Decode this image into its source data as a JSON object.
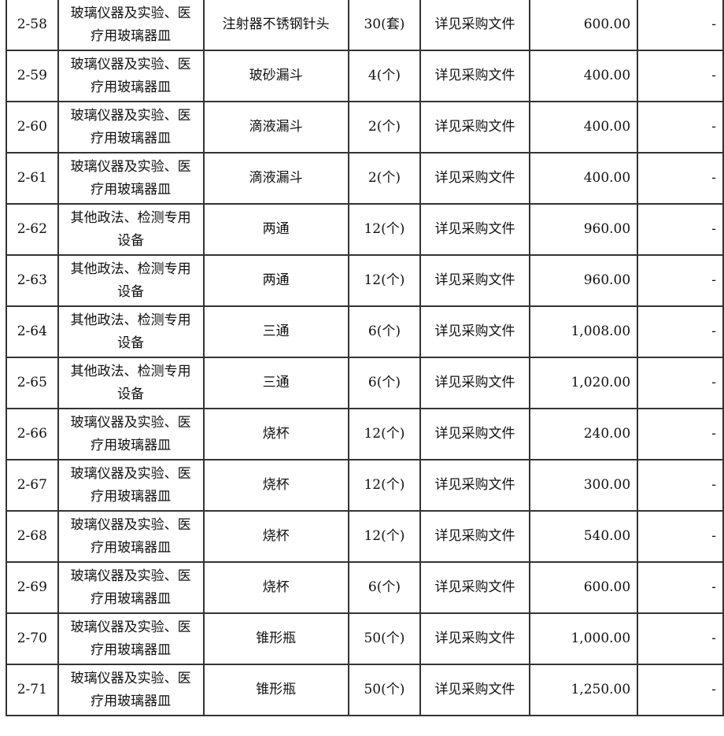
{
  "rows": [
    {
      "id": "2-58",
      "category": "玻璃仪器及实验、医疗用玻璃器皿",
      "name": "注射器不锈钢针头",
      "qty": "30(套)",
      "spec": "详见采购文件",
      "amount": "600.00",
      "remark": "-"
    },
    {
      "id": "2-59",
      "category": "玻璃仪器及实验、医疗用玻璃器皿",
      "name": "玻砂漏斗",
      "qty": "4(个)",
      "spec": "详见采购文件",
      "amount": "400.00",
      "remark": "-"
    },
    {
      "id": "2-60",
      "category": "玻璃仪器及实验、医疗用玻璃器皿",
      "name": "滴液漏斗",
      "qty": "2(个)",
      "spec": "详见采购文件",
      "amount": "400.00",
      "remark": "-"
    },
    {
      "id": "2-61",
      "category": "玻璃仪器及实验、医疗用玻璃器皿",
      "name": "滴液漏斗",
      "qty": "2(个)",
      "spec": "详见采购文件",
      "amount": "400.00",
      "remark": "-"
    },
    {
      "id": "2-62",
      "category": "其他政法、检测专用设备",
      "name": "两通",
      "qty": "12(个)",
      "spec": "详见采购文件",
      "amount": "960.00",
      "remark": "-"
    },
    {
      "id": "2-63",
      "category": "其他政法、检测专用设备",
      "name": "两通",
      "qty": "12(个)",
      "spec": "详见采购文件",
      "amount": "960.00",
      "remark": "-"
    },
    {
      "id": "2-64",
      "category": "其他政法、检测专用设备",
      "name": "三通",
      "qty": "6(个)",
      "spec": "详见采购文件",
      "amount": "1,008.00",
      "remark": "-"
    },
    {
      "id": "2-65",
      "category": "其他政法、检测专用设备",
      "name": "三通",
      "qty": "6(个)",
      "spec": "详见采购文件",
      "amount": "1,020.00",
      "remark": "-"
    },
    {
      "id": "2-66",
      "category": "玻璃仪器及实验、医疗用玻璃器皿",
      "name": "烧杯",
      "qty": "12(个)",
      "spec": "详见采购文件",
      "amount": "240.00",
      "remark": "-"
    },
    {
      "id": "2-67",
      "category": "玻璃仪器及实验、医疗用玻璃器皿",
      "name": "烧杯",
      "qty": "12(个)",
      "spec": "详见采购文件",
      "amount": "300.00",
      "remark": "-"
    },
    {
      "id": "2-68",
      "category": "玻璃仪器及实验、医疗用玻璃器皿",
      "name": "烧杯",
      "qty": "12(个)",
      "spec": "详见采购文件",
      "amount": "540.00",
      "remark": "-"
    },
    {
      "id": "2-69",
      "category": "玻璃仪器及实验、医疗用玻璃器皿",
      "name": "烧杯",
      "qty": "6(个)",
      "spec": "详见采购文件",
      "amount": "600.00",
      "remark": "-"
    },
    {
      "id": "2-70",
      "category": "玻璃仪器及实验、医疗用玻璃器皿",
      "name": "锥形瓶",
      "qty": "50(个)",
      "spec": "详见采购文件",
      "amount": "1,000.00",
      "remark": "-"
    },
    {
      "id": "2-71",
      "category": "玻璃仪器及实验、医疗用玻璃器皿",
      "name": "锥形瓶",
      "qty": "50(个)",
      "spec": "详见采购文件",
      "amount": "1,250.00",
      "remark": "-"
    }
  ]
}
